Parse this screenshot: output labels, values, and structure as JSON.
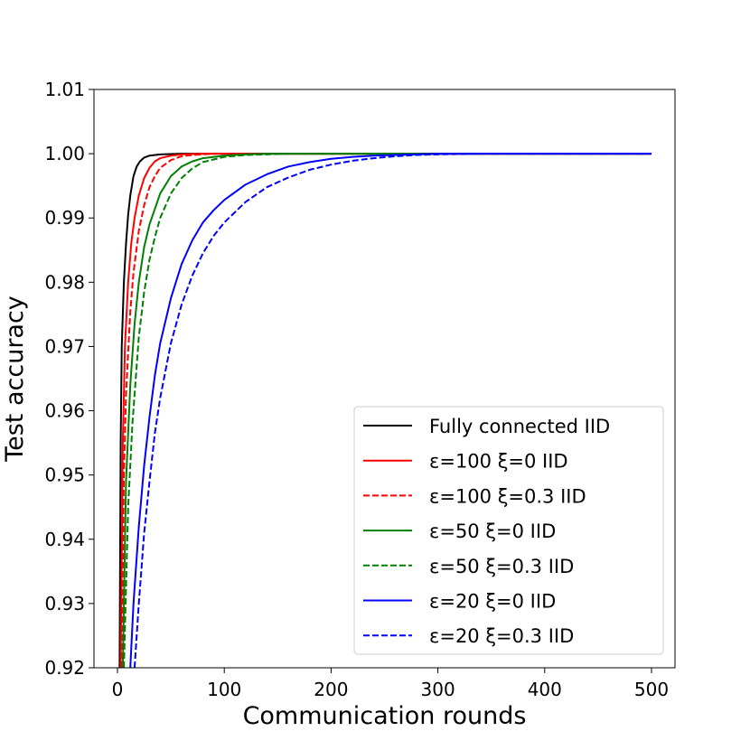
{
  "chart_data": {
    "type": "line",
    "title": "",
    "xlabel": "Communication rounds",
    "ylabel": "Test accuracy",
    "xlim": [
      -22,
      522
    ],
    "ylim": [
      0.92,
      1.01
    ],
    "xticks": [
      0,
      100,
      200,
      300,
      400,
      500
    ],
    "xtick_labels": [
      "0",
      "100",
      "200",
      "300",
      "400",
      "500"
    ],
    "yticks": [
      0.92,
      0.93,
      0.94,
      0.95,
      0.96,
      0.97,
      0.98,
      0.99,
      1.0,
      1.01
    ],
    "ytick_labels": [
      "0.92",
      "0.93",
      "0.94",
      "0.95",
      "0.96",
      "0.97",
      "0.98",
      "0.99",
      "1.00",
      "1.01"
    ],
    "grid": false,
    "legend_position": "lower-right",
    "series": [
      {
        "name": "Fully connected IID",
        "color": "#000000",
        "dashed": false,
        "x": [
          2,
          3,
          4,
          6,
          8,
          10,
          12,
          15,
          18,
          21,
          25,
          30,
          40,
          60,
          80,
          500
        ],
        "y": [
          0.92,
          0.955,
          0.97,
          0.98,
          0.986,
          0.9905,
          0.9935,
          0.9965,
          0.998,
          0.9988,
          0.9994,
          0.9997,
          0.9999,
          1.0,
          1.0,
          1.0
        ]
      },
      {
        "name": "ε=100 ξ=0 IID",
        "color": "#ff0000",
        "dashed": false,
        "x": [
          3,
          5,
          7,
          10,
          13,
          16,
          20,
          25,
          30,
          35,
          40,
          50,
          60,
          80,
          500
        ],
        "y": [
          0.92,
          0.955,
          0.97,
          0.98,
          0.9862,
          0.99,
          0.9935,
          0.9962,
          0.9978,
          0.9988,
          0.9993,
          0.9997,
          0.9999,
          1.0,
          1.0
        ]
      },
      {
        "name": "ε=100 ξ=0.3 IID",
        "color": "#ff0000",
        "dashed": true,
        "x": [
          4,
          6,
          8,
          12,
          15,
          20,
          25,
          30,
          35,
          40,
          50,
          60,
          70,
          90,
          500
        ],
        "y": [
          0.92,
          0.95,
          0.9625,
          0.9755,
          0.9815,
          0.988,
          0.992,
          0.9948,
          0.9965,
          0.9978,
          0.999,
          0.9996,
          0.9998,
          1.0,
          1.0
        ]
      },
      {
        "name": "ε=50 ξ=0 IID",
        "color": "#008000",
        "dashed": false,
        "x": [
          5,
          8,
          12,
          16,
          20,
          25,
          30,
          40,
          50,
          60,
          70,
          80,
          100,
          120,
          140,
          500
        ],
        "y": [
          0.92,
          0.949,
          0.964,
          0.9735,
          0.98,
          0.9855,
          0.989,
          0.9938,
          0.9965,
          0.998,
          0.9988,
          0.9993,
          0.9997,
          0.9999,
          1.0,
          1.0
        ]
      },
      {
        "name": "ε=50 ξ=0.3 IID",
        "color": "#008000",
        "dashed": true,
        "x": [
          6,
          10,
          14,
          20,
          25,
          30,
          35,
          40,
          50,
          60,
          70,
          80,
          100,
          120,
          140,
          160,
          500
        ],
        "y": [
          0.92,
          0.945,
          0.958,
          0.9715,
          0.9785,
          0.9835,
          0.987,
          0.99,
          0.9938,
          0.9962,
          0.9977,
          0.9987,
          0.9995,
          0.9998,
          0.9999,
          1.0,
          1.0
        ]
      },
      {
        "name": "ε=20 ξ=0 IID",
        "color": "#0000ff",
        "dashed": false,
        "x": [
          12,
          15,
          20,
          25,
          30,
          35,
          40,
          50,
          60,
          70,
          80,
          90,
          100,
          120,
          140,
          160,
          180,
          200,
          220,
          240,
          260,
          300,
          500
        ],
        "y": [
          0.92,
          0.93,
          0.942,
          0.9515,
          0.959,
          0.9655,
          0.9705,
          0.9775,
          0.9828,
          0.9865,
          0.9893,
          0.9912,
          0.9928,
          0.9952,
          0.9968,
          0.998,
          0.9987,
          0.9992,
          0.9995,
          0.9997,
          0.9998,
          1.0,
          1.0
        ]
      },
      {
        "name": "ε=20 ξ=0.3 IID",
        "color": "#0000ff",
        "dashed": true,
        "x": [
          16,
          20,
          25,
          30,
          35,
          40,
          50,
          60,
          70,
          80,
          90,
          100,
          120,
          140,
          160,
          180,
          200,
          220,
          240,
          260,
          280,
          300,
          340,
          500
        ],
        "y": [
          0.92,
          0.93,
          0.941,
          0.949,
          0.9565,
          0.962,
          0.9705,
          0.9765,
          0.981,
          0.9845,
          0.9872,
          0.9893,
          0.9925,
          0.9948,
          0.9963,
          0.9975,
          0.9983,
          0.9989,
          0.9993,
          0.9996,
          0.9998,
          0.9999,
          1.0,
          1.0
        ]
      }
    ]
  }
}
